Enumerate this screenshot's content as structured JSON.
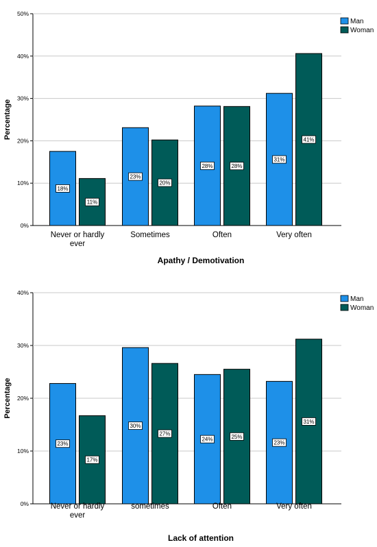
{
  "chart_data": [
    {
      "type": "bar",
      "xlabel": "Apathy / Demotivation",
      "ylabel": "Percentage",
      "ylim": [
        0,
        50
      ],
      "yticks": [
        "0%",
        "10%",
        "20%",
        "30%",
        "40%",
        "50%"
      ],
      "grid": true,
      "legend_position": "top-right",
      "categories": [
        [
          "Never or hardly",
          "ever"
        ],
        [
          "Sometimes"
        ],
        [
          "Often"
        ],
        [
          "Very often"
        ]
      ],
      "series": [
        {
          "name": "Man",
          "color": "#1e90e8",
          "values": [
            17.5,
            23.1,
            28.2,
            31.2
          ],
          "labels": [
            "18%",
            "23%",
            "28%",
            "31%"
          ]
        },
        {
          "name": "Woman",
          "color": "#005b58",
          "values": [
            11.1,
            20.2,
            28.1,
            40.6
          ],
          "labels": [
            "11%",
            "20%",
            "28%",
            "41%"
          ]
        }
      ]
    },
    {
      "type": "bar",
      "xlabel": "Lack of attention",
      "ylabel": "Percentage",
      "ylim": [
        0,
        40
      ],
      "yticks": [
        "0%",
        "10%",
        "20%",
        "30%",
        "40%"
      ],
      "grid": true,
      "legend_position": "top-right",
      "categories": [
        [
          "Never or hardly",
          "ever"
        ],
        [
          "sometimes"
        ],
        [
          "Often"
        ],
        [
          "Very often"
        ]
      ],
      "series": [
        {
          "name": "Man",
          "color": "#1e90e8",
          "values": [
            22.8,
            29.6,
            24.5,
            23.2
          ],
          "labels": [
            "23%",
            "30%",
            "24%",
            "23%"
          ]
        },
        {
          "name": "Woman",
          "color": "#005b58",
          "values": [
            16.7,
            26.6,
            25.5,
            31.2
          ],
          "labels": [
            "17%",
            "27%",
            "25%",
            "31%"
          ]
        }
      ]
    }
  ]
}
